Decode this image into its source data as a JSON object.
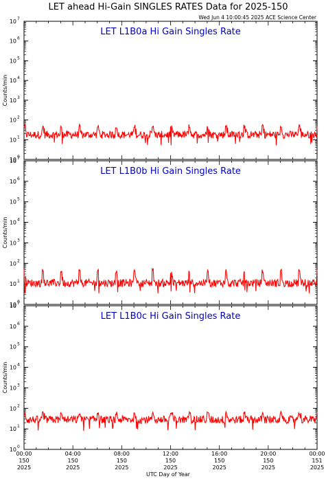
{
  "page": {
    "title": "LET ahead Hi-Gain SINGLES RATES Data for 2025-150",
    "timestamp": "Wed Jun  4 10:00:45 2025 ACE Science Center"
  },
  "colors": {
    "series": "#ff0000",
    "panel_title": "#0000cc",
    "axes": "#000000"
  },
  "chart_data": [
    {
      "type": "line",
      "title": "LET L1B0a Hi Gain Singles Rate",
      "xlabel": "UTC Day of Year",
      "ylabel": "Counts/min",
      "yscale": "log",
      "ylim": [
        1,
        10000000
      ],
      "xlim": [
        0,
        24
      ],
      "grid": false,
      "series": [
        {
          "values": {
            "baseline": 18,
            "spike_peak": 50,
            "spike_period_h": 1.5
          }
        }
      ]
    },
    {
      "type": "line",
      "title": "LET L1B0b Hi Gain Singles Rate",
      "xlabel": "UTC Day of Year",
      "ylabel": "Counts/min",
      "yscale": "log",
      "ylim": [
        1,
        10000000
      ],
      "xlim": [
        0,
        24
      ],
      "grid": false,
      "series": [
        {
          "values": {
            "baseline": 11,
            "spike_peak": 45,
            "spike_period_h": 1.5
          }
        }
      ]
    },
    {
      "type": "line",
      "title": "LET L1B0c Hi Gain Singles Rate",
      "xlabel": "UTC Day of Year",
      "ylabel": "Counts/min",
      "yscale": "log",
      "ylim": [
        1,
        10000000
      ],
      "xlim": [
        0,
        24
      ],
      "grid": false,
      "series": [
        {
          "values": {
            "baseline": 28,
            "spike_peak": 60,
            "spike_period_h": 1.5
          }
        }
      ]
    }
  ],
  "x_axis": {
    "ticks": [
      {
        "time": "00:00",
        "day": "150",
        "year": "2025",
        "hour": 0
      },
      {
        "time": "04:00",
        "day": "150",
        "year": "2025",
        "hour": 4
      },
      {
        "time": "08:00",
        "day": "150",
        "year": "2025",
        "hour": 8
      },
      {
        "time": "12:00",
        "day": "150",
        "year": "2025",
        "hour": 12
      },
      {
        "time": "16:00",
        "day": "150",
        "year": "2025",
        "hour": 16
      },
      {
        "time": "20:00",
        "day": "150",
        "year": "2025",
        "hour": 20
      },
      {
        "time": "00:00",
        "day": "151",
        "year": "2025",
        "hour": 24
      }
    ],
    "label": "UTC Day of Year"
  },
  "y_axis": {
    "ticks": [
      {
        "base": "10",
        "exp": "0",
        "pow": 0
      },
      {
        "base": "10",
        "exp": "1",
        "pow": 1
      },
      {
        "base": "10",
        "exp": "2",
        "pow": 2
      },
      {
        "base": "10",
        "exp": "3",
        "pow": 3
      },
      {
        "base": "10",
        "exp": "4",
        "pow": 4
      },
      {
        "base": "10",
        "exp": "5",
        "pow": 5
      },
      {
        "base": "10",
        "exp": "6",
        "pow": 6
      },
      {
        "base": "10",
        "exp": "7",
        "pow": 7
      }
    ]
  }
}
